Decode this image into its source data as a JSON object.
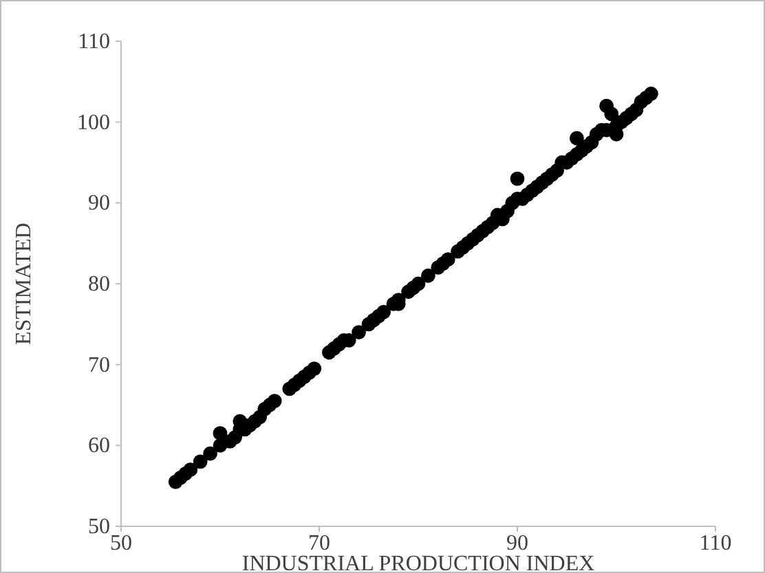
{
  "chart_data": {
    "type": "scatter",
    "xlabel": "INDUSTRIAL PRODUCTION INDEX",
    "ylabel": "ESTIMATED",
    "xlim": [
      50,
      110
    ],
    "ylim": [
      50,
      110
    ],
    "xticks": [
      50,
      70,
      90,
      110
    ],
    "yticks": [
      50,
      60,
      70,
      80,
      90,
      100,
      110
    ],
    "grid": false,
    "marker": "circle",
    "series": [
      {
        "color": "#000000",
        "x": [
          55.5,
          56,
          56.5,
          57,
          58,
          59,
          60,
          60,
          61,
          61.5,
          62,
          62,
          62.5,
          63,
          63.5,
          64,
          64.5,
          65,
          65.5,
          67,
          67.5,
          68,
          68.5,
          69,
          69.5,
          71,
          71.5,
          72,
          72.5,
          73,
          74,
          75,
          75.5,
          76,
          76.5,
          77.5,
          78,
          78,
          79,
          79.5,
          80,
          81,
          82,
          82.5,
          83,
          84,
          84.5,
          85,
          85.5,
          86,
          86.5,
          87,
          87.5,
          88,
          88.5,
          89,
          89.5,
          90,
          90,
          90.5,
          91,
          91.5,
          92,
          92.5,
          93,
          93.5,
          94,
          94.5,
          95,
          95.5,
          96,
          96,
          96.5,
          97,
          97.5,
          98,
          98.5,
          99,
          99,
          99.5,
          100,
          100,
          100.5,
          101,
          101.5,
          102,
          102.5,
          103,
          103.5
        ],
        "values": [
          55.5,
          56,
          56.5,
          57,
          58,
          59,
          60,
          61.5,
          60.5,
          61,
          63,
          62,
          62,
          62.5,
          63,
          63.5,
          64.5,
          65,
          65.5,
          67,
          67.5,
          68,
          68.5,
          69,
          69.5,
          71.5,
          72,
          72.5,
          73,
          73,
          74,
          75,
          75.5,
          76,
          76.5,
          77.5,
          77.5,
          78,
          79,
          79.5,
          80,
          81,
          82,
          82.5,
          83,
          84,
          84.5,
          85,
          85.5,
          86,
          86.5,
          87,
          87.5,
          88.5,
          88,
          89,
          90,
          90.5,
          93,
          90.5,
          91,
          91.5,
          92,
          92.5,
          93,
          93.5,
          94,
          95,
          95,
          95.5,
          96,
          98,
          96.5,
          97,
          97.5,
          98.5,
          99,
          99,
          102,
          101,
          99.5,
          98.5,
          100,
          100.5,
          101,
          101.5,
          102.5,
          103,
          103.5
        ]
      }
    ]
  }
}
